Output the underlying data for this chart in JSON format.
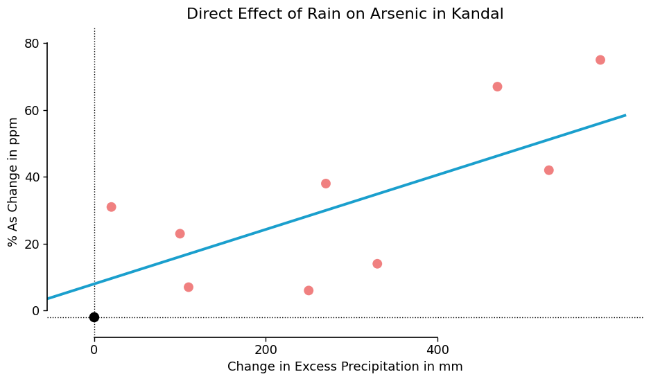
{
  "title": "Direct Effect of Rain on Arsenic in Kandal",
  "xlabel": "Change in Excess Precipitation in mm",
  "ylabel": "% As Change in ppm",
  "scatter_pink": {
    "x": [
      20,
      100,
      110,
      250,
      270,
      330,
      470,
      530,
      590
    ],
    "y": [
      31,
      23,
      7,
      6,
      38,
      14,
      67,
      42,
      75
    ]
  },
  "scatter_black": {
    "x": [
      0
    ],
    "y": [
      -2
    ]
  },
  "regression_line": {
    "x0": -55,
    "x1": 620,
    "y0": 3.5,
    "y1": 58.5
  },
  "xlim": [
    -55,
    640
  ],
  "ylim": [
    -8,
    85
  ],
  "yticks": [
    0,
    20,
    40,
    60,
    80
  ],
  "xticks": [
    0,
    200,
    400
  ],
  "pink_color": "#f08080",
  "black_color": "#000000",
  "line_color": "#1a9fcd",
  "dotted_line_y": -2,
  "dotted_vline_x": 0,
  "background_color": "#ffffff",
  "title_fontsize": 16,
  "label_fontsize": 13,
  "tick_fontsize": 13,
  "line_width": 2.8,
  "pink_size": 100,
  "black_size": 110
}
